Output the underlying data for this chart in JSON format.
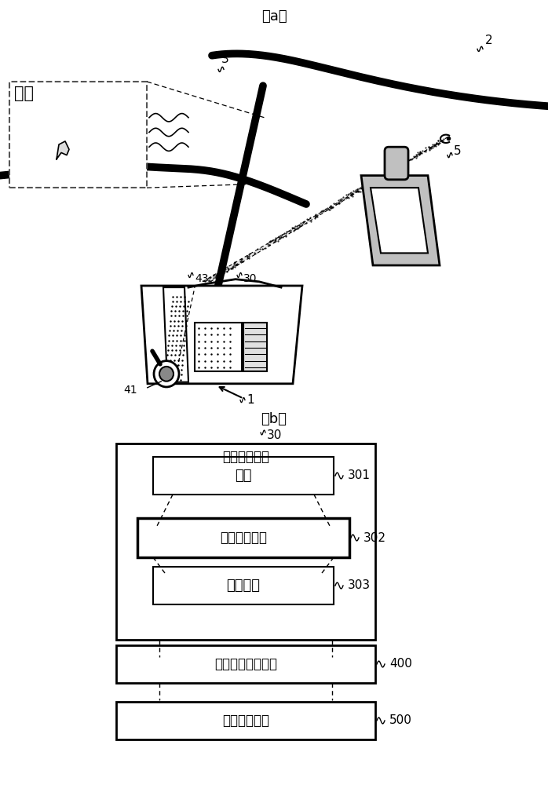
{
  "fig_width": 6.98,
  "fig_height": 10.0,
  "dpi": 100,
  "bg_color": "#ffffff",
  "label_a": "（a）",
  "label_b": "（b）",
  "xu_xiang": "虚像",
  "num_2": "2",
  "num_3": "3",
  "num_5": "5",
  "num_1": "1",
  "num_30_top": "30",
  "num_30_bot": "30",
  "num_41": "41",
  "num_43": "43",
  "num_301": "301",
  "num_302": "302",
  "num_303": "303",
  "num_400": "400",
  "num_500": "500",
  "text_main": "影像显示装置",
  "text_301": "光源",
  "text_302": "照明光学系统",
  "text_303": "显示元件",
  "text_400": "显示距离调节机构",
  "text_500": "反射镜驱动部"
}
